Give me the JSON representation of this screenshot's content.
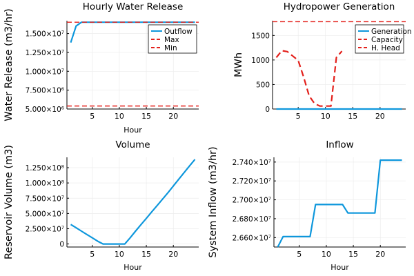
{
  "colors": {
    "primary": "#0e97dc",
    "dashed_red": "#e3201b",
    "grid": "#ececec",
    "axis": "#000000"
  },
  "chart_data": [
    {
      "id": "water-release",
      "type": "line",
      "title": "Hourly Water Release",
      "xlabel": "Hour",
      "ylabel": "Water Release (m3/hr)",
      "xlim": [
        0.3,
        24.7
      ],
      "ylim": [
        5000000,
        16700000
      ],
      "x_ticks": [
        5,
        10,
        15,
        20
      ],
      "y_ticks": [
        5000000,
        7500000,
        10000000,
        12500000,
        15000000
      ],
      "y_tick_labels": [
        "5.000×10⁶",
        "7.500×10⁶",
        "1.000×10⁷",
        "1.250×10⁷",
        "1.500×10⁷"
      ],
      "legend": {
        "position": "top-right",
        "entries": [
          "Outflow",
          "Max",
          "Min"
        ]
      },
      "series": [
        {
          "name": "Outflow",
          "style": "solid",
          "color": "#0e97dc",
          "x": [
            1,
            2,
            3,
            4,
            5,
            6,
            7,
            8,
            9,
            10,
            11,
            12,
            13,
            14,
            15,
            16,
            17,
            18,
            19,
            20,
            21,
            22,
            23,
            24
          ],
          "y": [
            13800000,
            16000000,
            16500000,
            16500000,
            16500000,
            16500000,
            16500000,
            16500000,
            16500000,
            16500000,
            16500000,
            16500000,
            16500000,
            16500000,
            16500000,
            16500000,
            16500000,
            16500000,
            16500000,
            16500000,
            16500000,
            16500000,
            16500000,
            16500000
          ]
        },
        {
          "name": "Max",
          "style": "hline-dashed",
          "color": "#e3201b",
          "y": 16500000
        },
        {
          "name": "Min",
          "style": "hline-dashed",
          "color": "#e3201b",
          "y": 5400000
        }
      ]
    },
    {
      "id": "hydropower",
      "type": "line",
      "title": "Hydropower Generation",
      "xlabel": "",
      "ylabel": "MWh",
      "xlim": [
        0.3,
        24.7
      ],
      "ylim": [
        0,
        1800
      ],
      "x_ticks": [
        5,
        10,
        15,
        20
      ],
      "y_ticks": [
        0,
        500,
        1000,
        1500
      ],
      "y_tick_labels": [
        "0",
        "500",
        "1000",
        "1500"
      ],
      "legend": {
        "position": "top-right",
        "entries": [
          "Generation",
          "Capacity",
          "H. Head"
        ]
      },
      "series": [
        {
          "name": "Generation",
          "style": "solid",
          "color": "#0e97dc",
          "x": [
            1,
            2,
            3,
            4,
            5,
            6,
            7,
            8,
            9,
            10,
            11,
            12,
            13,
            14,
            15,
            16,
            17,
            18,
            19,
            20,
            21,
            22,
            23,
            24
          ],
          "y": [
            0,
            0,
            0,
            0,
            0,
            0,
            0,
            0,
            0,
            0,
            0,
            0,
            0,
            0,
            0,
            0,
            0,
            0,
            0,
            0,
            0,
            0,
            0,
            0
          ]
        },
        {
          "name": "Capacity",
          "style": "hline-dashed",
          "color": "#e3201b",
          "y": 1780
        },
        {
          "name": "H. Head",
          "style": "dashed",
          "color": "#e3201b",
          "x": [
            1,
            2,
            3,
            4,
            5,
            6,
            7,
            8,
            9,
            10,
            11,
            12,
            13
          ],
          "y": [
            1050,
            1190,
            1170,
            1080,
            990,
            650,
            270,
            110,
            60,
            60,
            60,
            1050,
            1180
          ]
        }
      ]
    },
    {
      "id": "volume",
      "type": "line",
      "title": "Volume",
      "xlabel": "Hour",
      "ylabel": "Reservoir Volume (m3)",
      "xlim": [
        0.3,
        24.7
      ],
      "ylim": [
        -5000000,
        142000000
      ],
      "x_ticks": [
        5,
        10,
        15,
        20
      ],
      "y_ticks": [
        0,
        25000000,
        50000000,
        75000000,
        100000000,
        125000000
      ],
      "y_tick_labels": [
        "0",
        "2.500×10⁷",
        "5.000×10⁷",
        "7.500×10⁷",
        "1.000×10⁸",
        "1.250×10⁸"
      ],
      "series": [
        {
          "name": "",
          "style": "solid",
          "color": "#0e97dc",
          "x": [
            1,
            2,
            3,
            4,
            5,
            6,
            7,
            8,
            9,
            10,
            11,
            12,
            13,
            14,
            15,
            16,
            17,
            18,
            19,
            20,
            21,
            22,
            23,
            24
          ],
          "y": [
            32000000,
            26500000,
            21000000,
            15500000,
            10000000,
            4500000,
            0,
            0,
            0,
            0,
            0,
            10000000,
            21000000,
            31500000,
            42000000,
            52500000,
            63000000,
            73500000,
            84000000,
            95000000,
            106000000,
            117000000,
            128000000,
            138500000
          ]
        }
      ]
    },
    {
      "id": "inflow",
      "type": "line",
      "title": "Inflow",
      "xlabel": "Hour",
      "ylabel": "System Inflow (m3/hr)",
      "xlim": [
        0.3,
        24.7
      ],
      "ylim": [
        26500000,
        27450000
      ],
      "x_ticks": [
        5,
        10,
        15,
        20
      ],
      "y_ticks": [
        26600000,
        26800000,
        27000000,
        27200000,
        27400000
      ],
      "y_tick_labels": [
        "2.660×10⁷",
        "2.680×10⁷",
        "2.700×10⁷",
        "2.720×10⁷",
        "2.740×10⁷"
      ],
      "series": [
        {
          "name": "",
          "style": "solid",
          "color": "#0e97dc",
          "x": [
            1,
            2,
            3,
            4,
            5,
            6,
            7,
            8,
            9,
            10,
            11,
            12,
            13,
            14,
            15,
            16,
            17,
            18,
            19,
            20,
            21,
            22,
            23,
            24
          ],
          "y": [
            26500000,
            26610000,
            26610000,
            26610000,
            26610000,
            26610000,
            26610000,
            26950000,
            26950000,
            26950000,
            26950000,
            26950000,
            26950000,
            26860000,
            26860000,
            26860000,
            26860000,
            26860000,
            26860000,
            27420000,
            27420000,
            27420000,
            27420000,
            27420000
          ]
        }
      ]
    }
  ]
}
